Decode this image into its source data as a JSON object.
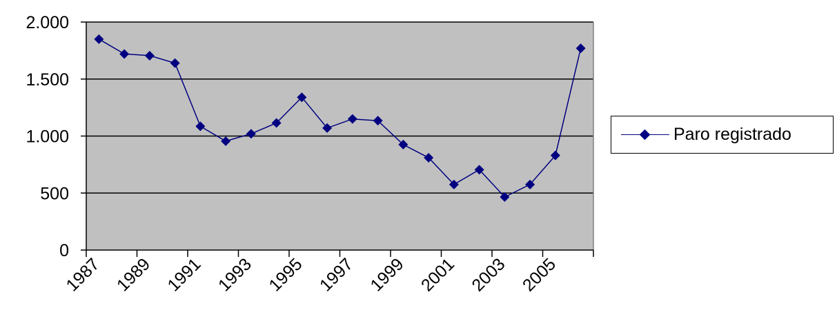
{
  "chart_data": {
    "type": "line",
    "x": [
      1987,
      1988,
      1989,
      1990,
      1991,
      1992,
      1993,
      1994,
      1995,
      1996,
      1997,
      1998,
      1999,
      2000,
      2001,
      2002,
      2003,
      2004,
      2005,
      2006
    ],
    "x_tick_labels": [
      "1987",
      "1989",
      "1991",
      "1993",
      "1995",
      "1997",
      "1999",
      "2001",
      "2003",
      "2005"
    ],
    "y_tick_labels": [
      "0",
      "500",
      "1.000",
      "1.500",
      "2.000"
    ],
    "ylim": [
      0,
      2000
    ],
    "y_ticks": [
      0,
      500,
      1000,
      1500,
      2000
    ],
    "grid": true,
    "legend_position": "right",
    "series": [
      {
        "name": "Paro registrado",
        "values": [
          1850,
          1720,
          1705,
          1640,
          1085,
          955,
          1020,
          1115,
          1340,
          1070,
          1150,
          1135,
          925,
          810,
          575,
          705,
          465,
          575,
          830,
          1770
        ]
      }
    ],
    "colors": {
      "series": "#000080",
      "plot_background": "#c0c0c0",
      "gridline": "#000000"
    }
  }
}
